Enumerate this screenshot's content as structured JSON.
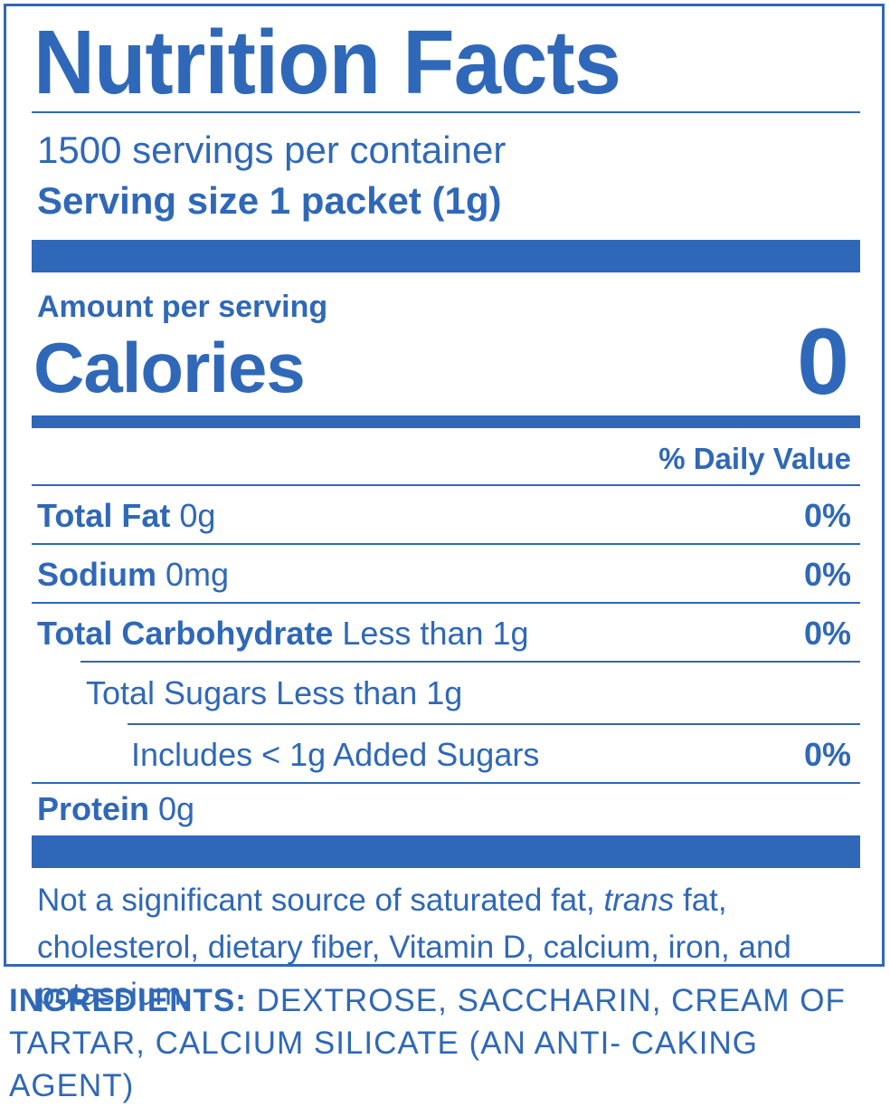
{
  "label": {
    "title": "Nutrition Facts",
    "servings_per_container": "1500 servings per container",
    "serving_size": "Serving size 1 packet (1g)",
    "amount_per_serving": "Amount per serving",
    "calories_label": "Calories",
    "calories_value": "0",
    "daily_value_header": "% Daily Value",
    "nutrients": [
      {
        "name": "Total Fat",
        "amount": "0g",
        "dv": "0%"
      },
      {
        "name": "Sodium",
        "amount": "0mg",
        "dv": "0%"
      },
      {
        "name": "Total Carbohydrate",
        "amount": "Less than 1g",
        "dv": "0%"
      },
      {
        "name": "",
        "amount": "Total Sugars Less than 1g",
        "dv": ""
      },
      {
        "name": "",
        "amount": "Includes < 1g Added Sugars",
        "dv": "0%"
      },
      {
        "name": "Protein",
        "amount": "0g",
        "dv": ""
      }
    ],
    "footnote": {
      "part1": "Not a significant source of saturated fat, ",
      "italic": "trans",
      "part2": " fat, cholesterol, dietary fiber, Vitamin D, calcium, iron, and potassium."
    }
  },
  "ingredients": {
    "label": "INGREDIENTS:",
    "text": " DEXTROSE, SACCHARIN, CREAM OF TARTAR, CALCIUM SILICATE (AN ANTI- CAKING AGENT)"
  },
  "colors": {
    "ink": "#2f68b8",
    "background": "#ffffff"
  }
}
